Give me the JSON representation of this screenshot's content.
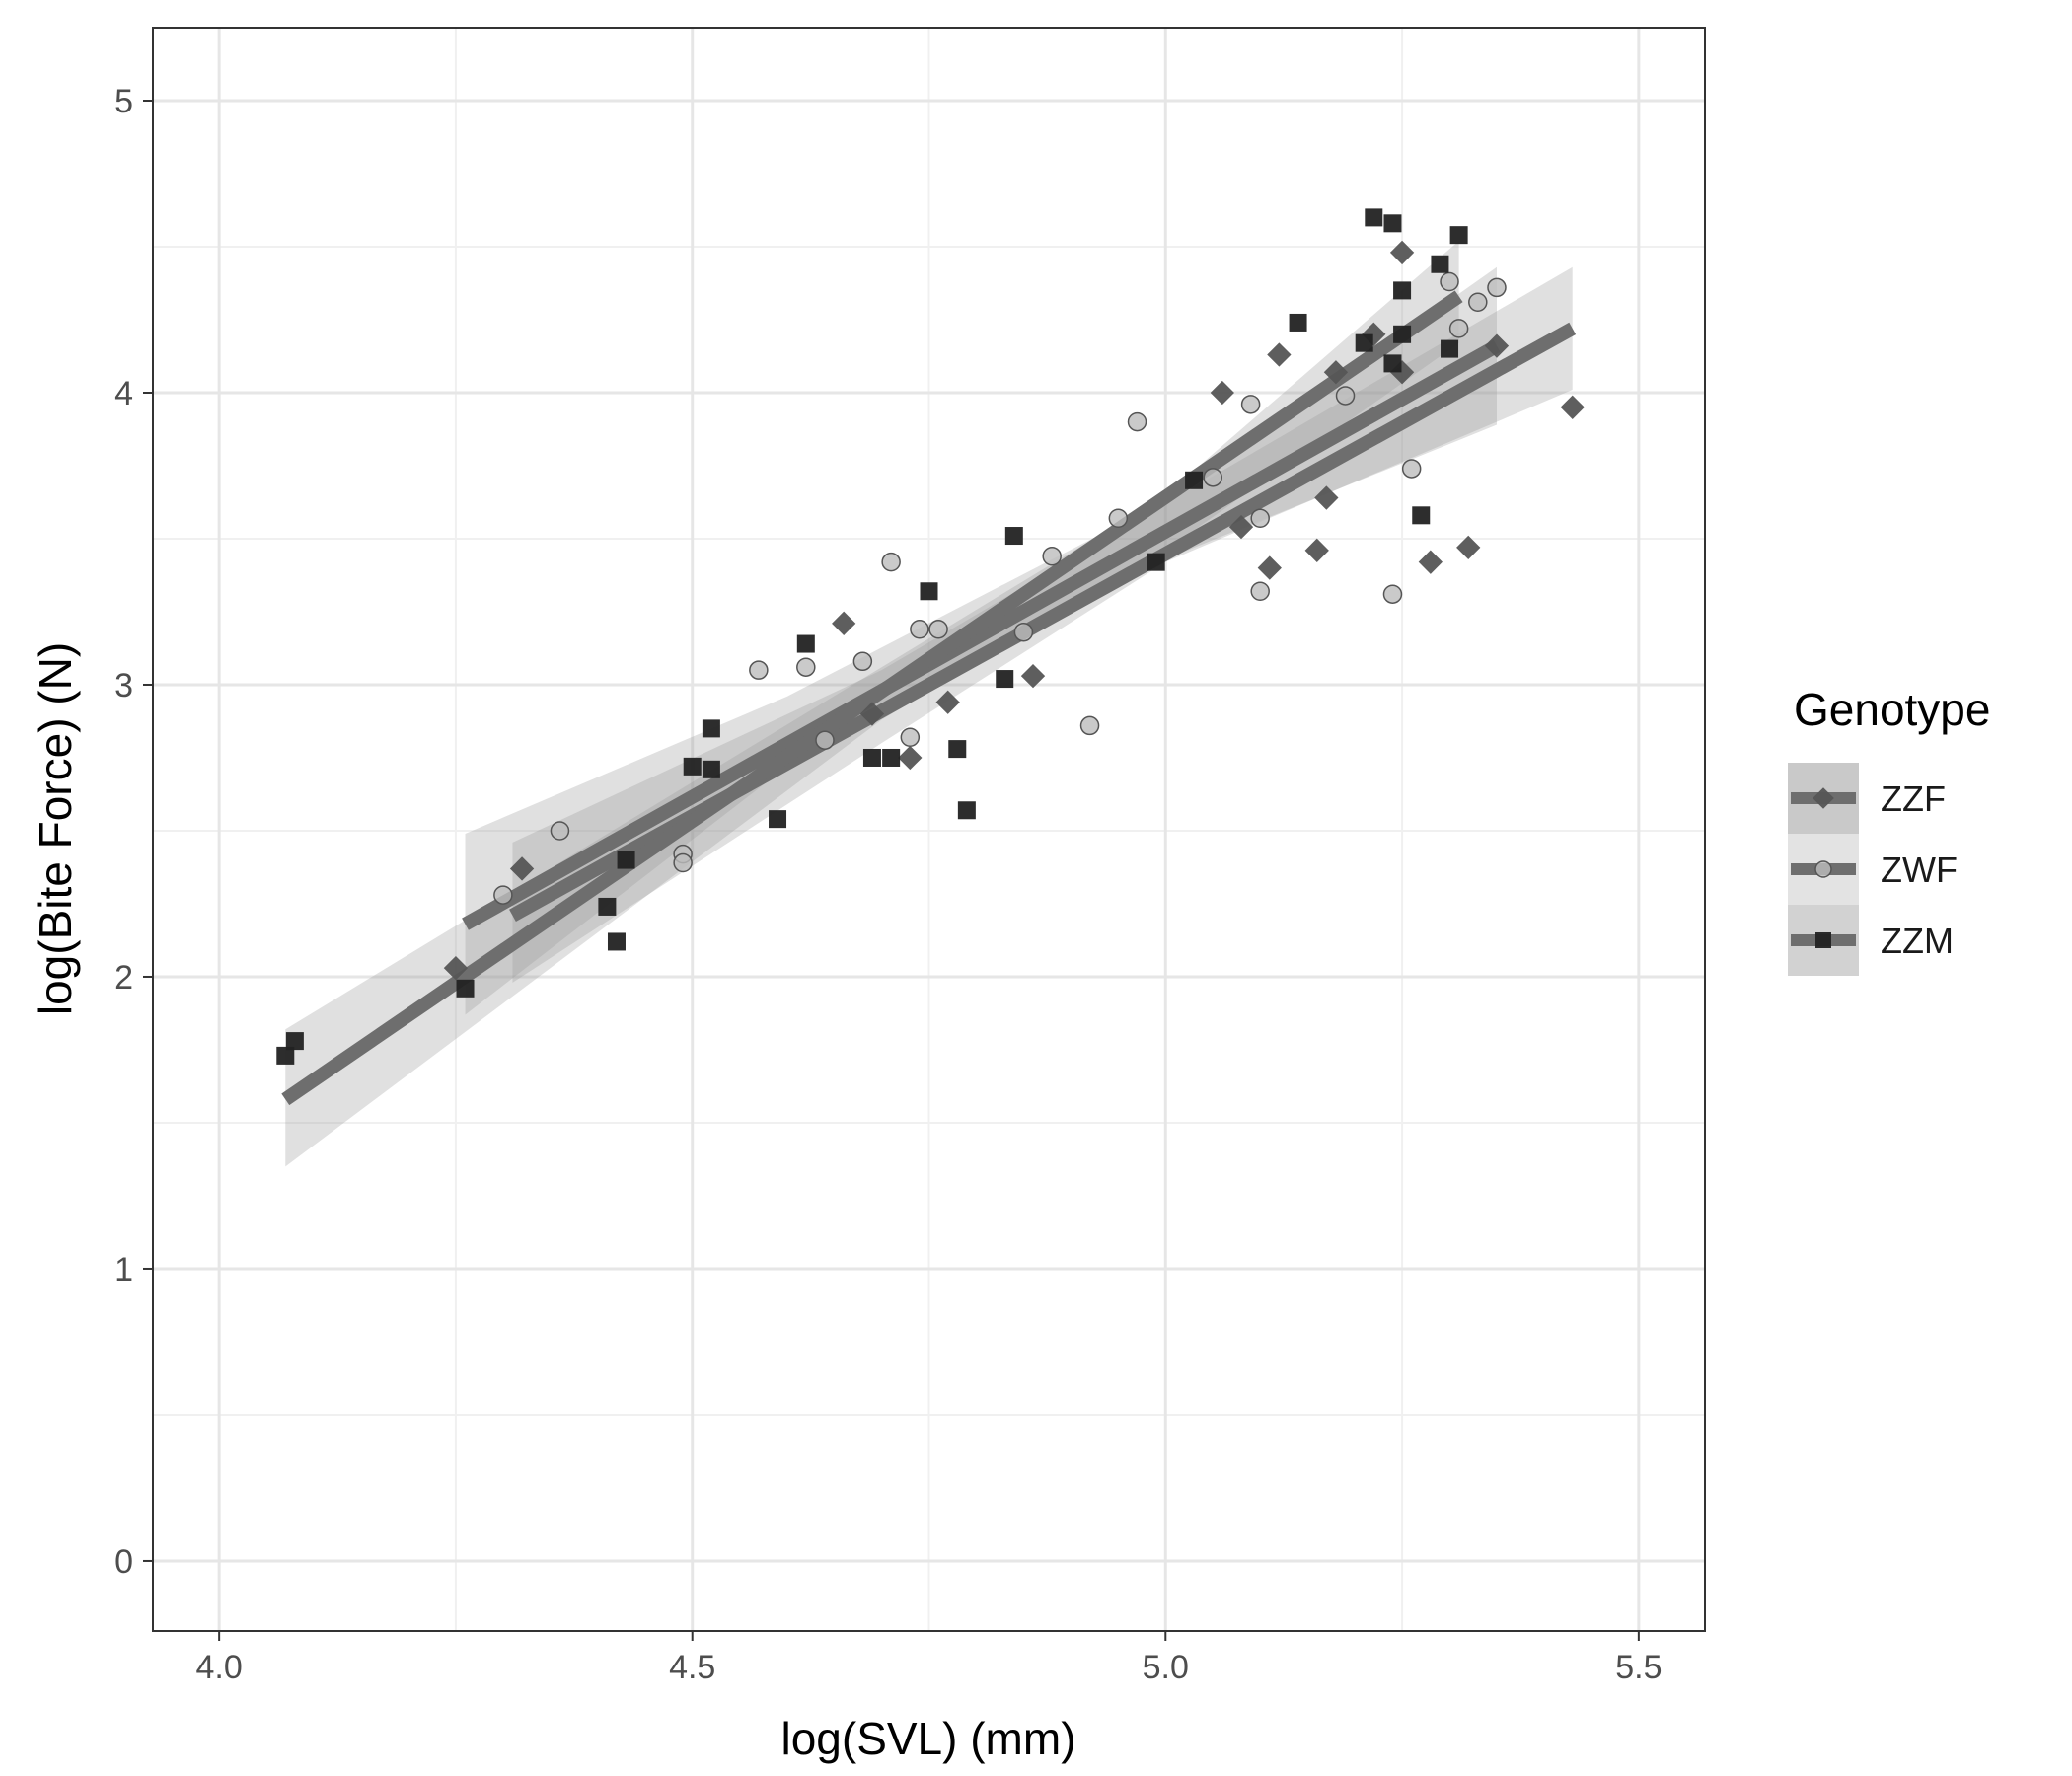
{
  "chart_data": {
    "type": "scatter",
    "title": "",
    "xlabel": "log(SVL) (mm)",
    "ylabel": "log(Bite Force) (N)",
    "xlim": [
      3.93,
      5.57
    ],
    "ylim": [
      -0.24,
      5.25
    ],
    "x_ticks": [
      4.0,
      4.5,
      5.0,
      5.5
    ],
    "x_tick_labels": [
      "4.0",
      "4.5",
      "5.0",
      "5.5"
    ],
    "y_ticks": [
      0,
      1,
      2,
      3,
      4,
      5
    ],
    "y_tick_labels": [
      "0",
      "1",
      "2",
      "3",
      "4",
      "5"
    ],
    "grid": true,
    "legend": {
      "title": "Genotype",
      "position": "right",
      "entries": [
        "ZZF",
        "ZWF",
        "ZZM"
      ]
    },
    "series": [
      {
        "name": "ZZF",
        "marker": "diamond",
        "color": "#555555",
        "points": [
          [
            4.25,
            2.03
          ],
          [
            4.32,
            2.37
          ],
          [
            4.66,
            3.21
          ],
          [
            4.69,
            2.9
          ],
          [
            4.73,
            2.75
          ],
          [
            4.77,
            2.94
          ],
          [
            4.86,
            3.03
          ],
          [
            5.06,
            4.0
          ],
          [
            5.08,
            3.54
          ],
          [
            5.11,
            3.4
          ],
          [
            5.12,
            4.13
          ],
          [
            5.16,
            3.46
          ],
          [
            5.17,
            3.64
          ],
          [
            5.18,
            4.07
          ],
          [
            5.22,
            4.2
          ],
          [
            5.25,
            4.07
          ],
          [
            5.25,
            4.48
          ],
          [
            5.28,
            3.42
          ],
          [
            5.32,
            3.47
          ],
          [
            5.35,
            4.16
          ],
          [
            5.43,
            3.95
          ]
        ],
        "fit": {
          "x": [
            4.26,
            5.35
          ],
          "y": [
            2.18,
            4.16
          ]
        },
        "band": {
          "x": [
            4.26,
            4.6,
            5.0,
            5.35
          ],
          "lower": [
            1.87,
            2.72,
            3.43,
            3.89
          ],
          "upper": [
            2.49,
            2.96,
            3.63,
            4.43
          ]
        }
      },
      {
        "name": "ZWF",
        "marker": "circle",
        "color": "#bdbdbd",
        "points": [
          [
            4.3,
            2.28
          ],
          [
            4.36,
            2.5
          ],
          [
            4.49,
            2.42
          ],
          [
            4.49,
            2.39
          ],
          [
            4.57,
            3.05
          ],
          [
            4.62,
            3.06
          ],
          [
            4.64,
            2.81
          ],
          [
            4.68,
            3.08
          ],
          [
            4.71,
            3.42
          ],
          [
            4.73,
            2.82
          ],
          [
            4.74,
            3.19
          ],
          [
            4.76,
            3.19
          ],
          [
            4.85,
            3.18
          ],
          [
            4.88,
            3.44
          ],
          [
            4.92,
            2.86
          ],
          [
            4.95,
            3.57
          ],
          [
            4.97,
            3.9
          ],
          [
            5.05,
            3.71
          ],
          [
            5.09,
            3.96
          ],
          [
            5.1,
            3.32
          ],
          [
            5.1,
            3.57
          ],
          [
            5.19,
            3.99
          ],
          [
            5.24,
            3.31
          ],
          [
            5.26,
            3.74
          ],
          [
            5.3,
            4.38
          ],
          [
            5.31,
            4.22
          ],
          [
            5.33,
            4.31
          ],
          [
            5.35,
            4.36
          ]
        ],
        "fit": {
          "x": [
            4.31,
            5.43
          ],
          "y": [
            2.21,
            4.22
          ]
        },
        "band": {
          "x": [
            4.31,
            4.7,
            5.0,
            5.43
          ],
          "lower": [
            1.98,
            2.8,
            3.42,
            4.01
          ],
          "upper": [
            2.46,
            3.05,
            3.62,
            4.43
          ]
        }
      },
      {
        "name": "ZZM",
        "marker": "square",
        "color": "#222222",
        "points": [
          [
            4.07,
            1.73
          ],
          [
            4.08,
            1.78
          ],
          [
            4.26,
            1.96
          ],
          [
            4.41,
            2.24
          ],
          [
            4.42,
            2.12
          ],
          [
            4.43,
            2.4
          ],
          [
            4.5,
            2.72
          ],
          [
            4.52,
            2.85
          ],
          [
            4.52,
            2.71
          ],
          [
            4.59,
            2.54
          ],
          [
            4.62,
            3.14
          ],
          [
            4.69,
            2.75
          ],
          [
            4.71,
            2.75
          ],
          [
            4.75,
            3.32
          ],
          [
            4.78,
            2.78
          ],
          [
            4.79,
            2.57
          ],
          [
            4.83,
            3.02
          ],
          [
            4.84,
            3.51
          ],
          [
            4.99,
            3.42
          ],
          [
            5.03,
            3.7
          ],
          [
            5.14,
            4.24
          ],
          [
            5.21,
            4.17
          ],
          [
            5.22,
            4.6
          ],
          [
            5.24,
            4.58
          ],
          [
            5.24,
            4.1
          ],
          [
            5.25,
            4.35
          ],
          [
            5.25,
            4.2
          ],
          [
            5.27,
            3.58
          ],
          [
            5.29,
            4.44
          ],
          [
            5.3,
            4.15
          ],
          [
            5.31,
            4.54
          ]
        ],
        "fit": {
          "x": [
            4.07,
            5.31
          ],
          "y": [
            1.58,
            4.33
          ]
        },
        "band": {
          "x": [
            4.07,
            4.7,
            5.0,
            5.31
          ],
          "lower": [
            1.35,
            2.88,
            3.46,
            4.17
          ],
          "upper": [
            1.82,
            3.06,
            3.65,
            4.52
          ]
        }
      }
    ]
  }
}
